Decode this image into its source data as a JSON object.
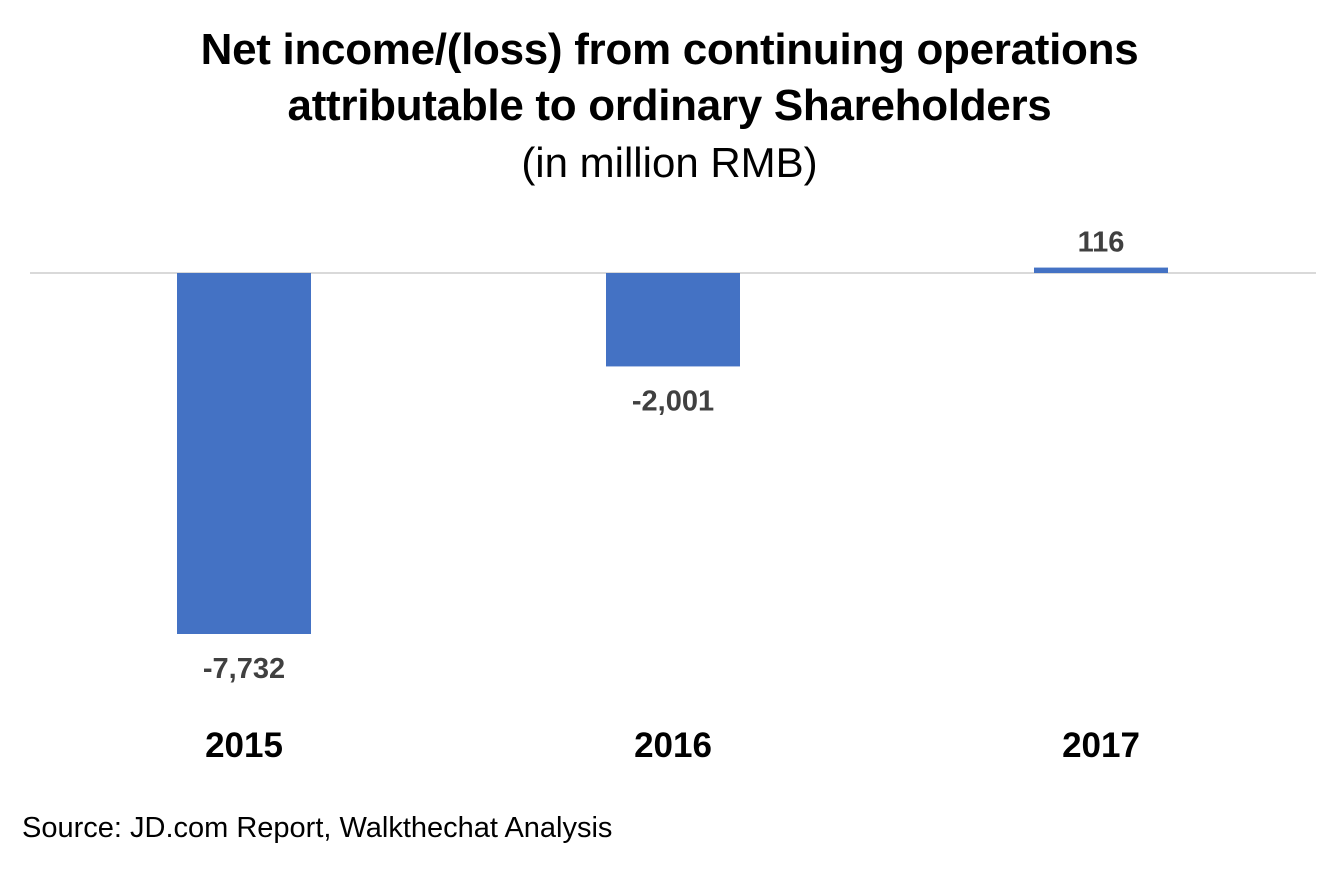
{
  "chart_data": {
    "type": "bar",
    "title_lines": [
      "Net income/(loss) from continuing operations",
      "attributable to ordinary Shareholders"
    ],
    "subtitle": "(in million RMB)",
    "categories": [
      "2015",
      "2016",
      "2017"
    ],
    "values": [
      -7732,
      -2001,
      116
    ],
    "data_labels": [
      "-7,732",
      "-2,001",
      "116"
    ],
    "xlabel": "",
    "ylabel": "",
    "grid": false,
    "legend": "none",
    "bar_color": "#4472C4",
    "source": "Source: JD.com Report, Walkthechat Analysis"
  }
}
